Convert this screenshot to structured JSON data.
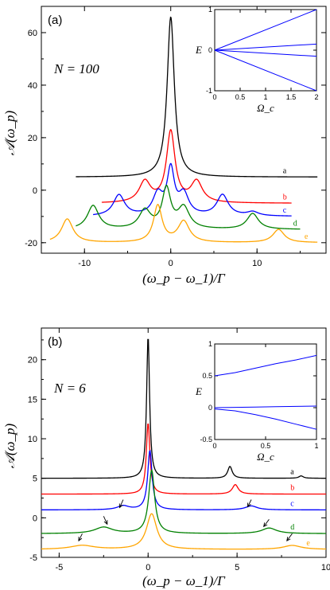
{
  "chart_data": [
    {
      "type": "line",
      "panel_label": "(a)",
      "annotation": "N = 100",
      "xlabel": "(ω_p − ω_1)/Γ",
      "ylabel": "𝒜(ω_p)",
      "xlim": [
        -15,
        18
      ],
      "ylim": [
        -24,
        70
      ],
      "xticks": [
        -10,
        0,
        10
      ],
      "yticks": [
        -20,
        0,
        20,
        40,
        60
      ],
      "xtick_labels": [
        "-10",
        "0",
        "10"
      ],
      "ytick_labels": [
        "-20",
        "0",
        "20",
        "40",
        "60"
      ],
      "series": [
        {
          "label": "a",
          "color": "#000000",
          "offset": 5,
          "x_range": [
            -11,
            17
          ],
          "peaks": [
            {
              "x": 0,
              "h": 61,
              "w": 0.5
            }
          ],
          "label_pos": [
            13,
            6.5
          ]
        },
        {
          "label": "b",
          "color": "#ff0000",
          "offset": -5,
          "x_range": [
            -8,
            14
          ],
          "peaks": [
            {
              "x": -3,
              "h": 8,
              "w": 0.8
            },
            {
              "x": 0,
              "h": 27,
              "w": 0.6
            },
            {
              "x": 3,
              "h": 8,
              "w": 0.8
            }
          ],
          "label_pos": [
            13,
            -3.5
          ]
        },
        {
          "label": "c",
          "color": "#0000ff",
          "offset": -10,
          "x_range": [
            -9,
            14
          ],
          "peaks": [
            {
              "x": -6,
              "h": 8,
              "w": 0.8
            },
            {
              "x": -1.5,
              "h": 8,
              "w": 0.7
            },
            {
              "x": 0,
              "h": 17,
              "w": 0.5
            },
            {
              "x": 1.5,
              "h": 8,
              "w": 0.7
            },
            {
              "x": 6,
              "h": 8,
              "w": 0.8
            },
            {
              "x": 9.5,
              "h": 1.5,
              "w": 0.8
            }
          ],
          "label_pos": [
            13,
            -8.5
          ]
        },
        {
          "label": "d",
          "color": "#008000",
          "offset": -15,
          "x_range": [
            -11,
            15
          ],
          "peaks": [
            {
              "x": -9,
              "h": 9,
              "w": 0.8
            },
            {
              "x": -3,
              "h": 7,
              "w": 0.8
            },
            {
              "x": -0.5,
              "h": 15,
              "w": 0.6
            },
            {
              "x": 1.5,
              "h": 8,
              "w": 0.8
            },
            {
              "x": 9.5,
              "h": 6,
              "w": 0.8
            }
          ],
          "label_pos": [
            14.2,
            -13.5
          ]
        },
        {
          "label": "e",
          "color": "#ffa500",
          "offset": -20,
          "x_range": [
            -14,
            17
          ],
          "peaks": [
            {
              "x": -12,
              "h": 9,
              "w": 0.8
            },
            {
              "x": -1.5,
              "h": 14,
              "w": 0.6
            },
            {
              "x": 1.5,
              "h": 8,
              "w": 0.8
            },
            {
              "x": 12.5,
              "h": 5,
              "w": 0.8
            }
          ],
          "label_pos": [
            15.5,
            -18.5
          ]
        }
      ],
      "inset": {
        "type": "line",
        "xlabel": "Ω_c",
        "ylabel": "E",
        "xlim": [
          0,
          2
        ],
        "ylim": [
          -1,
          1
        ],
        "xticks": [
          0,
          0.5,
          1,
          1.5,
          2
        ],
        "yticks": [
          -1,
          0,
          1
        ],
        "xtick_labels": [
          "0",
          "0.5",
          "1",
          "1.5",
          "2"
        ],
        "ytick_labels": [
          "-1",
          "0",
          "1"
        ],
        "color": "#0000ff",
        "lines": [
          {
            "x": [
              0,
              2
            ],
            "y": [
              0,
              1
            ]
          },
          {
            "x": [
              0,
              2
            ],
            "y": [
              0,
              0.15
            ]
          },
          {
            "x": [
              0,
              2
            ],
            "y": [
              0,
              -0.15
            ]
          },
          {
            "x": [
              0,
              2
            ],
            "y": [
              0,
              -1
            ]
          }
        ]
      }
    },
    {
      "type": "line",
      "panel_label": "(b)",
      "annotation": "N = 6",
      "xlabel": "(ω_p − ω_1)/Γ",
      "ylabel": "𝒜(ω_p)",
      "xlim": [
        -6,
        10
      ],
      "ylim": [
        -5,
        24
      ],
      "xticks": [
        -5,
        0,
        5,
        10
      ],
      "yticks": [
        -5,
        0,
        5,
        10,
        15,
        20
      ],
      "xtick_labels": [
        "-5",
        "0",
        "5",
        "10"
      ],
      "ytick_labels": [
        "-5",
        "0",
        "5",
        "10",
        "15",
        "20"
      ],
      "series": [
        {
          "label": "a",
          "color": "#000000",
          "offset": 5,
          "x_range": [
            -6,
            10
          ],
          "peaks": [
            {
              "x": 0,
              "h": 18,
              "w": 0.1
            },
            {
              "x": 4.6,
              "h": 1.5,
              "w": 0.15
            },
            {
              "x": 8.6,
              "h": 0.3,
              "w": 0.15
            }
          ],
          "label_pos": [
            8.0,
            5.5
          ]
        },
        {
          "label": "b",
          "color": "#ff0000",
          "offset": 3,
          "x_range": [
            -6,
            10
          ],
          "peaks": [
            {
              "x": 0,
              "h": 9,
              "w": 0.12
            },
            {
              "x": 4.9,
              "h": 1.2,
              "w": 0.2
            }
          ],
          "label_pos": [
            8.0,
            3.5
          ]
        },
        {
          "label": "c",
          "color": "#0000ff",
          "offset": 1,
          "x_range": [
            -6,
            10
          ],
          "peaks": [
            {
              "x": -1.4,
              "h": 0.5,
              "w": 0.4
            },
            {
              "x": 0.1,
              "h": 7.5,
              "w": 0.15
            },
            {
              "x": 5.8,
              "h": 0.5,
              "w": 0.4
            }
          ],
          "label_pos": [
            8.0,
            1.5
          ]
        },
        {
          "label": "d",
          "color": "#008000",
          "offset": -2,
          "x_range": [
            -6,
            10
          ],
          "peaks": [
            {
              "x": -2.5,
              "h": 0.8,
              "w": 0.6
            },
            {
              "x": 0.2,
              "h": 8,
              "w": 0.2
            },
            {
              "x": 6.8,
              "h": 0.7,
              "w": 0.5
            }
          ],
          "label_pos": [
            8.0,
            -1.5
          ]
        },
        {
          "label": "e",
          "color": "#ffa500",
          "offset": -4,
          "x_range": [
            -6,
            10
          ],
          "peaks": [
            {
              "x": -3.7,
              "h": 0.5,
              "w": 0.8
            },
            {
              "x": 0.2,
              "h": 4.5,
              "w": 0.35
            },
            {
              "x": 8.1,
              "h": 0.5,
              "w": 0.6
            }
          ],
          "label_pos": [
            8.9,
            -3.5
          ]
        }
      ],
      "arrows": [
        {
          "x": -1.4,
          "y": 2.3,
          "dx": -0.2,
          "dy": -1.0
        },
        {
          "x": 5.8,
          "y": 2.3,
          "dx": -0.2,
          "dy": -0.9
        },
        {
          "x": -2.5,
          "y": 0.2,
          "dx": 0.2,
          "dy": -1.0
        },
        {
          "x": 6.8,
          "y": -0.2,
          "dx": -0.3,
          "dy": -0.9
        },
        {
          "x": -3.7,
          "y": -2.0,
          "dx": -0.2,
          "dy": -0.9
        },
        {
          "x": 8.1,
          "y": -2.0,
          "dx": -0.3,
          "dy": -0.9
        }
      ],
      "inset": {
        "type": "line",
        "xlabel": "Ω_c",
        "ylabel": "E",
        "xlim": [
          0,
          1
        ],
        "ylim": [
          -0.5,
          1
        ],
        "xticks": [
          0,
          0.5,
          1
        ],
        "yticks": [
          -0.5,
          0,
          0.5,
          1
        ],
        "xtick_labels": [
          "0",
          "0.5",
          "1"
        ],
        "ytick_labels": [
          "-0.5",
          "0",
          "0.5",
          "1"
        ],
        "color": "#0000ff",
        "lines": [
          {
            "x": [
              0,
              0.2,
              0.4,
              0.6,
              0.8,
              1.0
            ],
            "y": [
              0.5,
              0.55,
              0.62,
              0.69,
              0.75,
              0.82
            ]
          },
          {
            "x": [
              0,
              0.2,
              0.4,
              0.6,
              0.8,
              1.0
            ],
            "y": [
              0,
              0.005,
              0.01,
              0.015,
              0.02,
              0.025
            ]
          },
          {
            "x": [
              0,
              0.2,
              0.4,
              0.6,
              0.8,
              1.0
            ],
            "y": [
              -0.02,
              -0.05,
              -0.11,
              -0.18,
              -0.26,
              -0.34
            ]
          }
        ]
      }
    }
  ]
}
